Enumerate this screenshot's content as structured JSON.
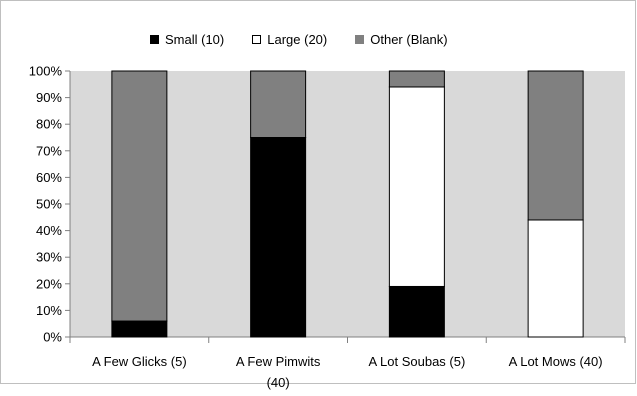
{
  "chart_data": {
    "type": "bar",
    "stacked": true,
    "percent_stacked": true,
    "categories": [
      "A Few Glicks (5)",
      "A Few Pimwits (40)",
      "A Lot Soubas (5)",
      "A Lot Mows (40)"
    ],
    "category_lines": [
      [
        "A Few Glicks (5)"
      ],
      [
        "A Few Pimwits",
        "(40)"
      ],
      [
        "A Lot Soubas (5)"
      ],
      [
        "A Lot Mows (40)"
      ]
    ],
    "series": [
      {
        "name": "Small (10)",
        "color": "#000000",
        "values": [
          6,
          75,
          19,
          0
        ]
      },
      {
        "name": "Large (20)",
        "color": "#ffffff",
        "values": [
          0,
          0,
          75,
          44
        ]
      },
      {
        "name": "Other (Blank)",
        "color": "#808080",
        "values": [
          94,
          25,
          6,
          56
        ]
      }
    ],
    "ylim": [
      0,
      100
    ],
    "yticks": [
      "0%",
      "10%",
      "20%",
      "30%",
      "40%",
      "50%",
      "60%",
      "70%",
      "80%",
      "90%",
      "100%"
    ],
    "plot_background": "#d9d9d9",
    "grid": false,
    "legend_position": "top",
    "title": "",
    "xlabel": "",
    "ylabel": ""
  }
}
